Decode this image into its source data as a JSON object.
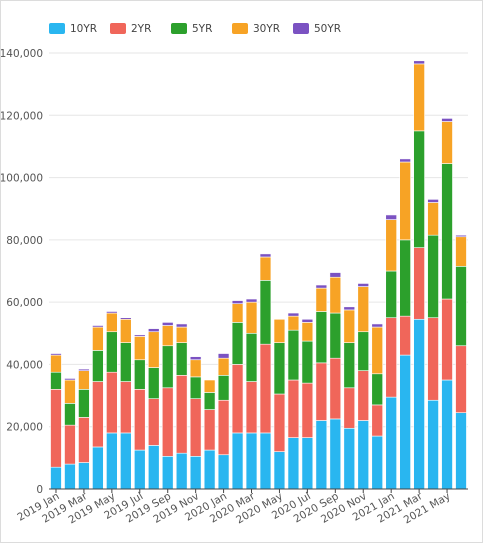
{
  "chart_data": {
    "type": "bar",
    "stacked": true,
    "categories": [
      "2019 Jan",
      "2019 Feb",
      "2019 Mar",
      "2019 Apr",
      "2019 May",
      "2019 Jun",
      "2019 Jul",
      "2019 Aug",
      "2019 Sep",
      "2019 Oct",
      "2019 Nov",
      "2019 Dec",
      "2020 Jan",
      "2020 Feb",
      "2020 Mar",
      "2020 Apr",
      "2020 May",
      "2020 Jun",
      "2020 Jul",
      "2020 Aug",
      "2020 Sep",
      "2020 Oct",
      "2020 Nov",
      "2020 Dec",
      "2021 Jan",
      "2021 Feb",
      "2021 Mar",
      "2021 Apr",
      "2021 May",
      "2021 Jun"
    ],
    "x_tick_labels": [
      "2019 Jan",
      "2019 Mar",
      "2019 May",
      "2019 Jul",
      "2019 Sep",
      "2019 Nov",
      "2020 Jan",
      "2020 Mar",
      "2020 May",
      "2020 Jul",
      "2020 Sep",
      "2020 Nov",
      "2021 Jan",
      "2021 Mar",
      "2021 May"
    ],
    "series": [
      {
        "name": "10YR",
        "color": "#29b6f0",
        "values": [
          7000,
          8000,
          8500,
          13500,
          18000,
          18000,
          12500,
          14000,
          10500,
          11500,
          10500,
          12500,
          11000,
          18000,
          18000,
          18000,
          12000,
          16500,
          16500,
          22000,
          22500,
          19500,
          22000,
          17000,
          29500,
          43000,
          54500,
          28500,
          35000,
          24500
        ]
      },
      {
        "name": "2YR",
        "color": "#f0665a",
        "values": [
          25000,
          12500,
          14500,
          21000,
          19500,
          16500,
          19500,
          15000,
          22000,
          25000,
          18500,
          13000,
          17500,
          22000,
          16500,
          28500,
          18500,
          18500,
          17500,
          18500,
          19500,
          13000,
          16000,
          10000,
          25500,
          12500,
          23000,
          26500,
          26000,
          21500
        ]
      },
      {
        "name": "5YR",
        "color": "#2ca02c",
        "values": [
          5500,
          7000,
          9000,
          10000,
          13000,
          12500,
          9500,
          10000,
          13500,
          10500,
          7000,
          5500,
          8000,
          13500,
          15500,
          20500,
          16500,
          16000,
          13500,
          16500,
          14500,
          14500,
          12500,
          10000,
          15000,
          24500,
          37500,
          26500,
          43500,
          25500
        ]
      },
      {
        "name": "30YR",
        "color": "#f7a325",
        "values": [
          5500,
          7500,
          6000,
          7500,
          6000,
          7500,
          7500,
          11500,
          6500,
          5000,
          5500,
          4000,
          5500,
          6000,
          10000,
          7500,
          7500,
          4500,
          6000,
          7500,
          11500,
          10500,
          14500,
          15000,
          16500,
          25000,
          21500,
          10500,
          13500,
          9500
        ]
      },
      {
        "name": "50YR",
        "color": "#7b52c2",
        "values": [
          500,
          500,
          500,
          500,
          500,
          500,
          500,
          1000,
          1000,
          1000,
          1000,
          0,
          1500,
          1000,
          1000,
          1000,
          0,
          1000,
          1000,
          1000,
          1500,
          1000,
          1000,
          1000,
          1500,
          1000,
          1000,
          1000,
          1000,
          500
        ]
      }
    ],
    "y_ticks": [
      "0",
      "20,000",
      "40,000",
      "60,000",
      "80,000",
      "100,000",
      "120,000",
      "140,000"
    ],
    "ylim": [
      0,
      140000
    ],
    "legend_position": "top-left",
    "grid": true,
    "title": "",
    "xlabel": "",
    "ylabel": ""
  }
}
